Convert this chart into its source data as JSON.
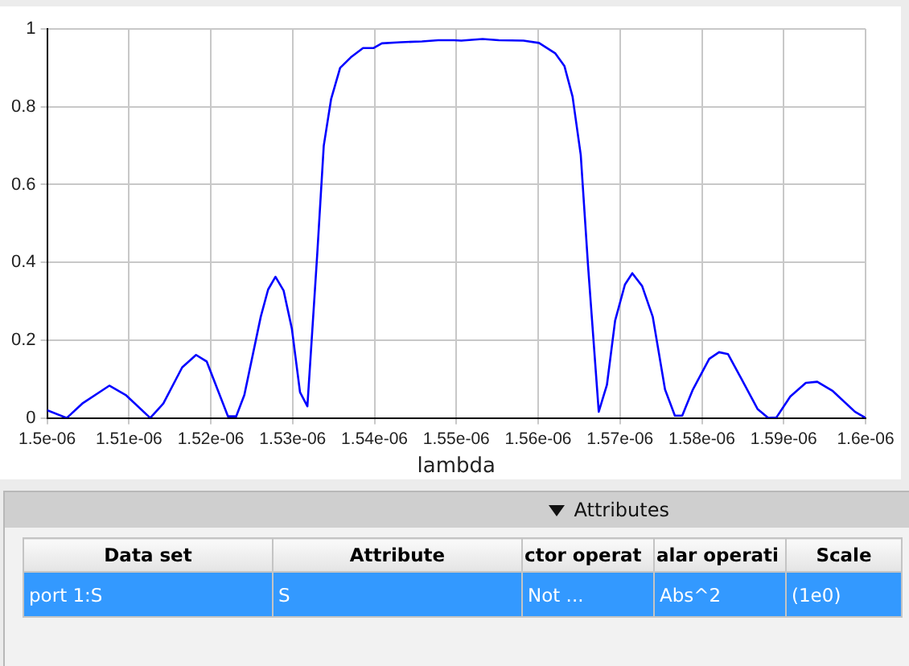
{
  "chart_data": [
    {
      "type": "line",
      "xlabel": "lambda",
      "series": [
        {
          "color": "#0000ff",
          "x": [
            1.5e-06,
            1.5024e-06,
            1.5043e-06,
            1.5076e-06,
            1.5096e-06,
            1.5126e-06,
            1.5142e-06,
            1.5165e-06,
            1.5182e-06,
            1.5195e-06,
            1.5221e-06,
            1.5231e-06,
            1.5241e-06,
            1.5261e-06,
            1.527e-06,
            1.5279e-06,
            1.5289e-06,
            1.5299e-06,
            1.5309e-06,
            1.5318e-06,
            1.533e-06,
            1.5338e-06,
            1.5347e-06,
            1.5358e-06,
            1.5371e-06,
            1.5386e-06,
            1.5399e-06,
            1.5409e-06,
            1.5432e-06,
            1.5458e-06,
            1.5478e-06,
            1.5497e-06,
            1.5506e-06,
            1.5532e-06,
            1.5552e-06,
            1.5582e-06,
            1.5601e-06,
            1.5621e-06,
            1.5632e-06,
            1.5642e-06,
            1.5652e-06,
            1.5661e-06,
            1.5674e-06,
            1.5684e-06,
            1.5694e-06,
            1.5706e-06,
            1.5715e-06,
            1.5727e-06,
            1.574e-06,
            1.5755e-06,
            1.5767e-06,
            1.5776e-06,
            1.5789e-06,
            1.5809e-06,
            1.5821e-06,
            1.5832e-06,
            1.5848e-06,
            1.5868e-06,
            1.5881e-06,
            1.5891e-06,
            1.5908e-06,
            1.5927e-06,
            1.5941e-06,
            1.596e-06,
            1.5987e-06,
            1.6e-06
          ],
          "values": [
            0.02,
            0,
            0.037,
            0.083,
            0.059,
            0,
            0.037,
            0.13,
            0.162,
            0.145,
            0.004,
            0.004,
            0.059,
            0.26,
            0.33,
            0.363,
            0.327,
            0.23,
            0.066,
            0.03,
            0.42,
            0.7,
            0.82,
            0.9,
            0.927,
            0.951,
            0.951,
            0.963,
            0.966,
            0.968,
            0.971,
            0.971,
            0.97,
            0.974,
            0.971,
            0.97,
            0.964,
            0.937,
            0.905,
            0.826,
            0.676,
            0.389,
            0.016,
            0.085,
            0.25,
            0.343,
            0.372,
            0.339,
            0.26,
            0.073,
            0.006,
            0.006,
            0.073,
            0.152,
            0.169,
            0.164,
            0.102,
            0.023,
            0,
            0.001,
            0.055,
            0.09,
            0.093,
            0.069,
            0.016,
            0
          ]
        }
      ],
      "xlim": [
        1.5e-06,
        1.6e-06
      ],
      "xticks": [
        {
          "value": 1.5e-06,
          "label": "1.5e-06"
        },
        {
          "value": 1.51e-06,
          "label": "1.51e-06"
        },
        {
          "value": 1.52e-06,
          "label": "1.52e-06"
        },
        {
          "value": 1.53e-06,
          "label": "1.53e-06"
        },
        {
          "value": 1.54e-06,
          "label": "1.54e-06"
        },
        {
          "value": 1.55e-06,
          "label": "1.55e-06"
        },
        {
          "value": 1.56e-06,
          "label": "1.56e-06"
        },
        {
          "value": 1.57e-06,
          "label": "1.57e-06"
        },
        {
          "value": 1.58e-06,
          "label": "1.58e-06"
        },
        {
          "value": 1.59e-06,
          "label": "1.59e-06"
        },
        {
          "value": 1.6e-06,
          "label": "1.6e-06"
        }
      ],
      "ylim": [
        0,
        1
      ],
      "yticks": [
        0,
        0.2,
        0.4,
        0.6,
        0.8,
        1
      ],
      "grid": true,
      "legend": false,
      "marker": "none",
      "line_style": "solid"
    },
    {
      "type": "other",
      "title": "Attributes",
      "annotations": [
        "Data set",
        "Attribute",
        "ctor operat",
        "alar operati",
        "Scale",
        "port 1:S",
        "S",
        "Not ...",
        "Abs^2",
        "(1e0)"
      ]
    }
  ]
}
